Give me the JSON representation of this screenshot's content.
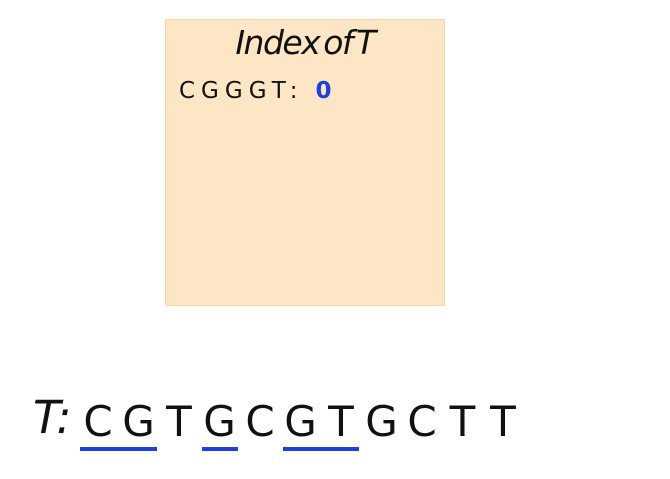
{
  "index_box": {
    "title": "Index of T",
    "entries": [
      {
        "key": "CGGGT",
        "separator": ":",
        "value": "0"
      }
    ]
  },
  "text": {
    "label": "T:",
    "characters": [
      "C",
      "G",
      "T",
      "G",
      "C",
      "G",
      "T",
      "G",
      "C",
      "T",
      "T"
    ],
    "underlined_spans": [
      {
        "start": 0,
        "end": 1
      },
      {
        "start": 3,
        "end": 3
      },
      {
        "start": 5,
        "end": 6
      }
    ]
  },
  "colors": {
    "box_fill": "#fde6c6",
    "box_border": "#fbd6a3",
    "highlight_blue": "#1f3fe0",
    "text": "#111111"
  }
}
